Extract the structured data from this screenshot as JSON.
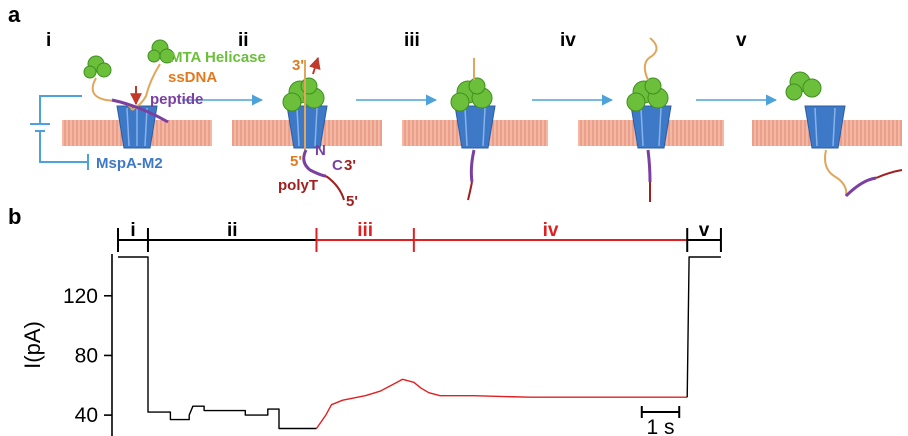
{
  "panels": {
    "a": "a",
    "b": "b"
  },
  "steps": [
    "i",
    "ii",
    "iii",
    "iv",
    "v"
  ],
  "labels": {
    "helicase": "MTA Helicase",
    "ssdna": "ssDNA",
    "peptide": "peptide",
    "pore": "MspA-M2",
    "three_prime_top": "3'",
    "five_prime_top": "5'",
    "n_term": "N",
    "c_term": "C",
    "three_prime_bottom": "3'",
    "polyt": "polyT",
    "five_prime_bottom": "5'",
    "battery_plus": "+",
    "battery_minus": "−"
  },
  "colors": {
    "helicase": "#6bbf3a",
    "ssdna": "#e07a1f",
    "peptide": "#7a3fa0",
    "pore": "#3e79c7",
    "polyt": "#a02020",
    "arrow": "#4da3d9",
    "membrane": "#f0a08a",
    "trace_black": "#000000",
    "trace_red": "#e02020"
  },
  "chart_data": {
    "type": "line",
    "title": "",
    "ylabel": "I(pA)",
    "xlabel": "",
    "yticks": [
      40,
      80,
      120
    ],
    "ylim": [
      26,
      148
    ],
    "xlim": [
      0,
      19.6
    ],
    "scalebar": {
      "label": "1 s",
      "length": 1
    },
    "phases": [
      {
        "label": "i",
        "start": 0,
        "end": 0.8,
        "color": "#000000"
      },
      {
        "label": "ii",
        "start": 0.8,
        "end": 5.3,
        "color": "#000000"
      },
      {
        "label": "iii",
        "start": 5.3,
        "end": 7.9,
        "color": "#e02020"
      },
      {
        "label": "iv",
        "start": 7.9,
        "end": 15.2,
        "color": "#e02020"
      },
      {
        "label": "v",
        "start": 15.2,
        "end": 16.1,
        "color": "#000000"
      }
    ],
    "series": [
      {
        "color": "#000000",
        "points": [
          [
            0,
            146
          ],
          [
            0.8,
            146
          ],
          [
            0.8,
            42
          ],
          [
            1.4,
            42
          ],
          [
            1.4,
            37
          ],
          [
            1.9,
            37
          ],
          [
            1.9,
            40
          ],
          [
            2.0,
            46
          ],
          [
            2.3,
            46
          ],
          [
            2.3,
            43
          ],
          [
            3.4,
            43
          ],
          [
            3.4,
            40
          ],
          [
            4.0,
            40
          ],
          [
            4.0,
            44
          ],
          [
            4.3,
            44
          ],
          [
            4.3,
            31
          ],
          [
            5.3,
            31
          ]
        ]
      },
      {
        "color": "#e02020",
        "points": [
          [
            5.3,
            31
          ],
          [
            5.55,
            40
          ],
          [
            5.7,
            47
          ],
          [
            6.0,
            50
          ],
          [
            6.6,
            53
          ],
          [
            7.0,
            56
          ],
          [
            7.3,
            60
          ],
          [
            7.6,
            64
          ],
          [
            7.9,
            62
          ],
          [
            8.1,
            58
          ],
          [
            8.3,
            55
          ],
          [
            8.6,
            53
          ],
          [
            9.5,
            53
          ],
          [
            11.0,
            52
          ],
          [
            12.5,
            52
          ],
          [
            14.0,
            52
          ],
          [
            15.2,
            52
          ]
        ]
      },
      {
        "color": "#000000",
        "points": [
          [
            15.2,
            52
          ],
          [
            15.25,
            146
          ],
          [
            16.1,
            146
          ]
        ]
      }
    ]
  }
}
